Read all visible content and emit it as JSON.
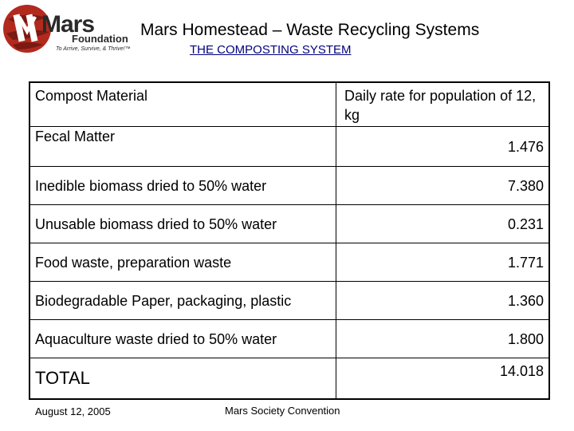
{
  "logo": {
    "wordmark": "Mars",
    "sub": "Foundation",
    "tagline": "To Arrive, Survive, & Thrive!™",
    "colors": {
      "planet": "#b22a1e",
      "planet_dark": "#7a1a12",
      "text": "#2a2a2a"
    }
  },
  "header": {
    "title": "Mars Homestead – Waste Recycling Systems",
    "subtitle": "THE COMPOSTING SYSTEM"
  },
  "table": {
    "columns": [
      "Compost Material",
      "Daily rate for population of 12,  kg"
    ],
    "rows": [
      {
        "material": "Fecal Matter",
        "rate": "1.476"
      },
      {
        "material": "Inedible biomass dried to 50% water",
        "rate": "7.380"
      },
      {
        "material": "Unusable biomass dried to 50% water",
        "rate": "0.231"
      },
      {
        "material": "Food waste, preparation waste",
        "rate": "1.771"
      },
      {
        "material": "Biodegradable Paper, packaging, plastic",
        "rate": "1.360"
      },
      {
        "material": "Aquaculture waste dried to 50% water",
        "rate": "1.800"
      }
    ],
    "total": {
      "label": "TOTAL",
      "rate": "14.018"
    }
  },
  "footer": {
    "date": "August 12, 2005",
    "event": "Mars Society Convention"
  },
  "colors": {
    "subtitle": "#000080",
    "border": "#000000"
  }
}
